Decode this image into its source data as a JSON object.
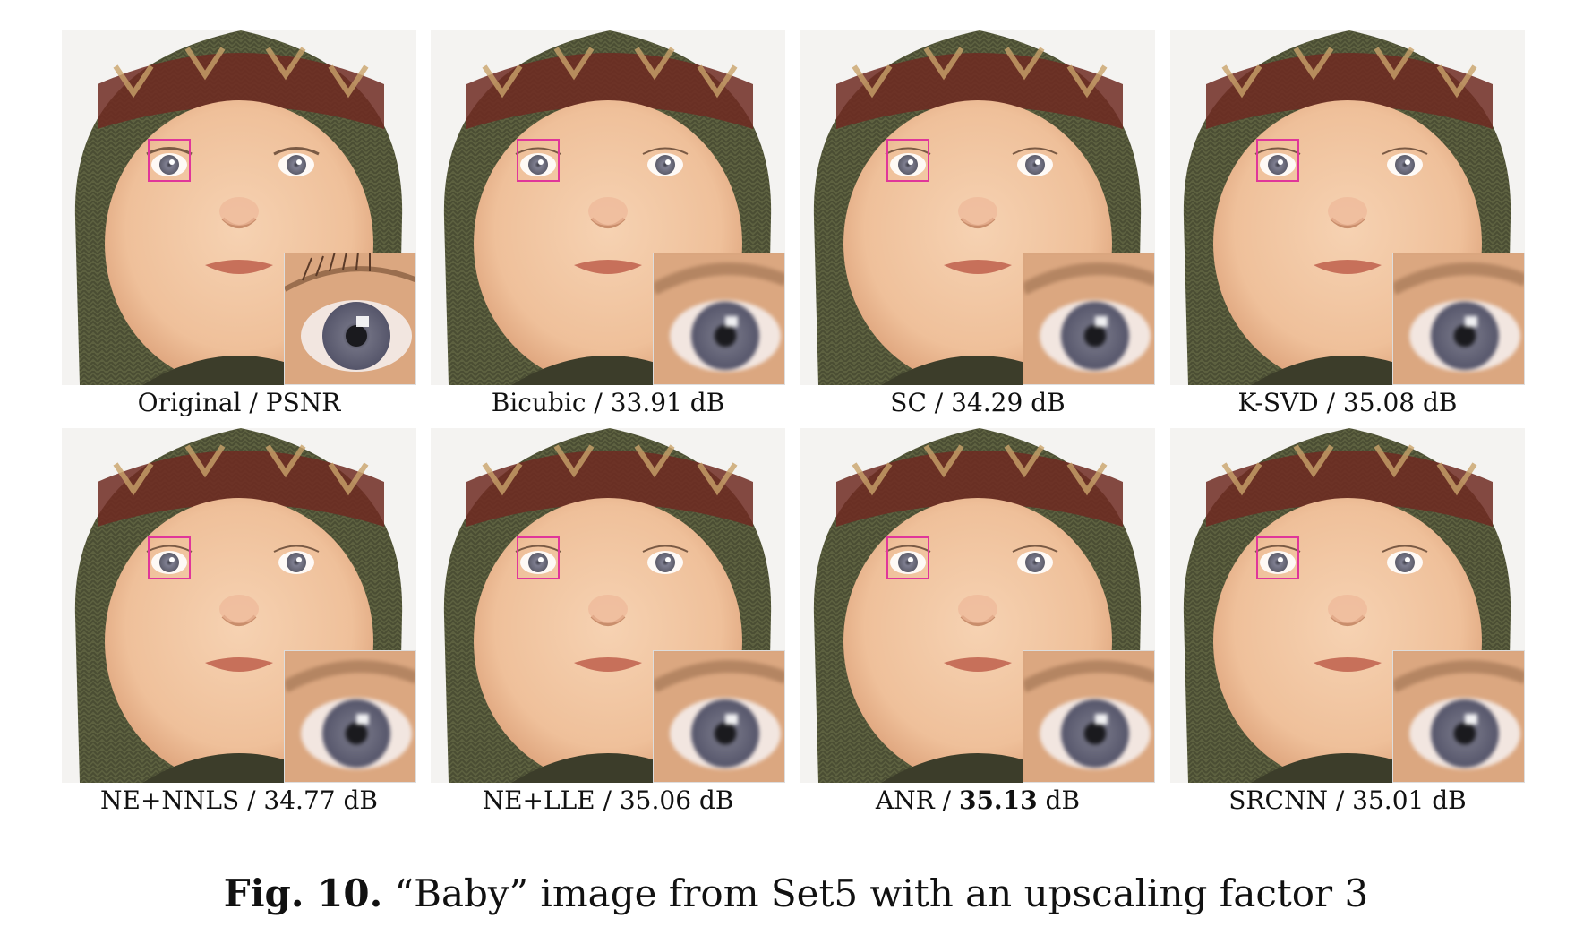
{
  "figure": {
    "caption_label": "Fig. 10.",
    "caption_text": "“Baby” image from Set5 with an upscaling factor 3"
  },
  "panels": [
    {
      "method": "Original",
      "sep": " / ",
      "value": "PSNR",
      "unit": "",
      "bold": false
    },
    {
      "method": "Bicubic",
      "sep": " / ",
      "value": "33.91",
      "unit": " dB",
      "bold": false
    },
    {
      "method": "SC",
      "sep": " / ",
      "value": "34.29",
      "unit": " dB",
      "bold": false
    },
    {
      "method": "K-SVD",
      "sep": " / ",
      "value": "35.08",
      "unit": " dB",
      "bold": false
    },
    {
      "method": "NE+NNLS",
      "sep": " / ",
      "value": "34.77",
      "unit": " dB",
      "bold": false
    },
    {
      "method": "NE+LLE",
      "sep": " / ",
      "value": "35.06",
      "unit": " dB",
      "bold": false
    },
    {
      "method": "ANR",
      "sep": " / ",
      "value": "35.13",
      "unit": " dB",
      "bold": true
    },
    {
      "method": "SRCNN",
      "sep": " / ",
      "value": "35.01",
      "unit": " dB",
      "bold": false
    }
  ],
  "colors": {
    "roi_box": "#e0369a",
    "hat_green": "#5d6140",
    "hat_red": "#6e2a22",
    "skin": "#efc09a",
    "eye": "#7e7e90"
  }
}
